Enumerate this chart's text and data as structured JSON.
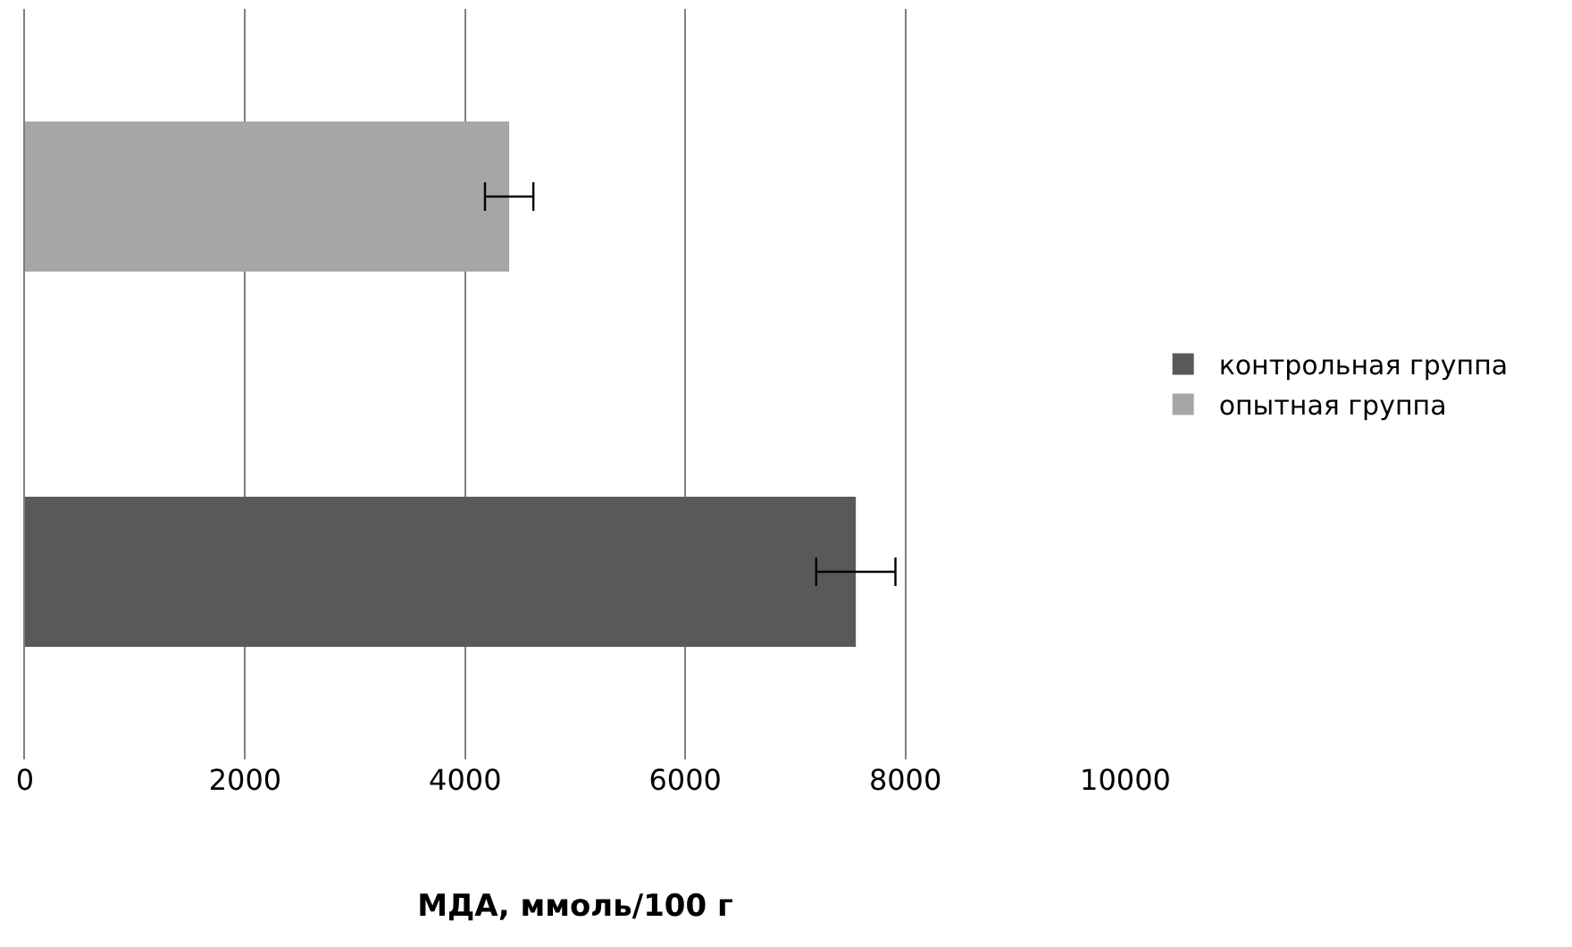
{
  "chart_data": {
    "type": "bar",
    "orientation": "horizontal",
    "xlabel": "МДА, ммоль/100 г",
    "categories": [
      null
    ],
    "series": [
      {
        "name": "контрольная группа",
        "color": "#595959",
        "values": [
          7550
        ],
        "errors": [
          360
        ]
      },
      {
        "name": "опытная группа",
        "color": "#a6a6a6",
        "values": [
          4400
        ],
        "errors": [
          220
        ]
      }
    ],
    "xlim": [
      0,
      10000
    ],
    "xticks": [
      0,
      2000,
      4000,
      6000,
      8000,
      10000
    ],
    "grid": "x",
    "legend": "right"
  }
}
